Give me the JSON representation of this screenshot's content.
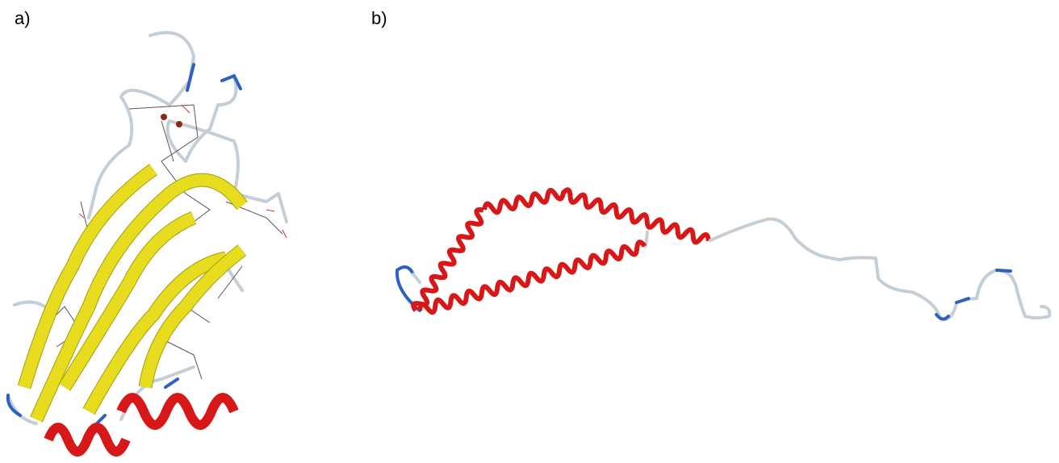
{
  "panel_a": {
    "label": "a)"
  },
  "panel_b": {
    "label": "b)"
  }
}
